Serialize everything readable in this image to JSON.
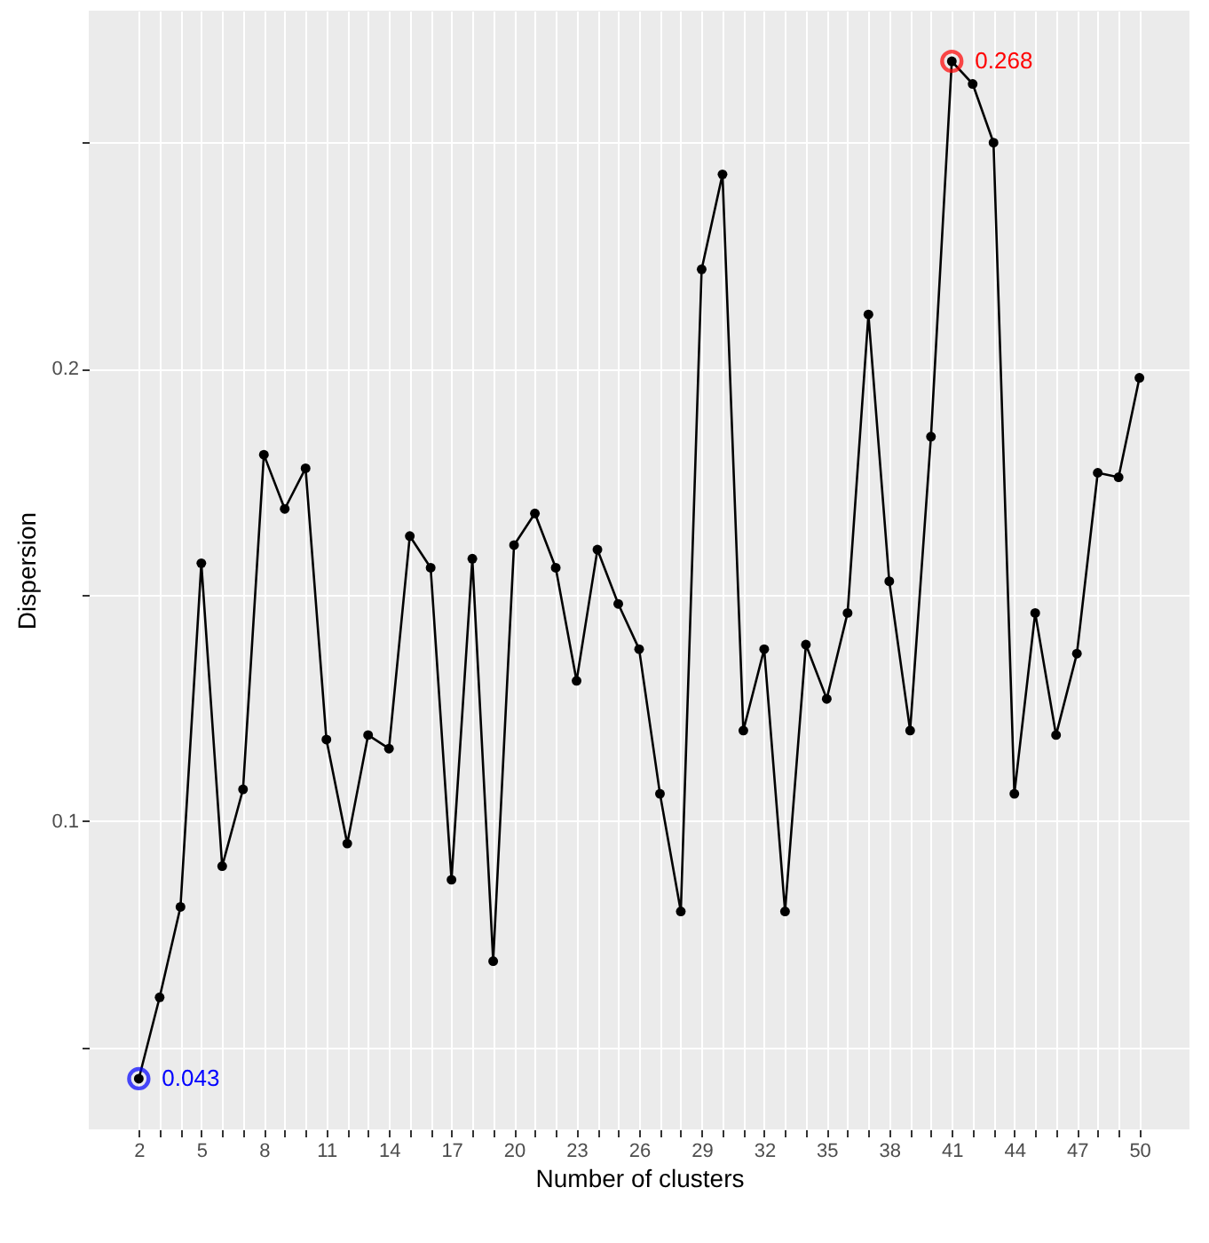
{
  "chart_data": {
    "type": "line",
    "xlabel": "Number of clusters",
    "ylabel": "Dispersion",
    "x": [
      2,
      3,
      4,
      5,
      6,
      7,
      8,
      9,
      10,
      11,
      12,
      13,
      14,
      15,
      16,
      17,
      18,
      19,
      20,
      21,
      22,
      23,
      24,
      25,
      26,
      27,
      28,
      29,
      30,
      31,
      32,
      33,
      34,
      35,
      36,
      37,
      38,
      39,
      40,
      41,
      42,
      43,
      44,
      45,
      46,
      47,
      48,
      49,
      50
    ],
    "xlim": [
      -0.4,
      52.4
    ],
    "xticks": [
      2,
      {
        "value": 3,
        "label": null
      },
      {
        "value": 4,
        "label": null
      },
      5,
      {
        "value": 6,
        "label": null
      },
      {
        "value": 7,
        "label": null
      },
      8,
      {
        "value": 9,
        "label": null
      },
      {
        "value": 10,
        "label": null
      },
      11,
      {
        "value": 12,
        "label": null
      },
      {
        "value": 13,
        "label": null
      },
      14,
      {
        "value": 15,
        "label": null
      },
      {
        "value": 16,
        "label": null
      },
      17,
      {
        "value": 18,
        "label": null
      },
      {
        "value": 19,
        "label": null
      },
      20,
      {
        "value": 21,
        "label": null
      },
      {
        "value": 22,
        "label": null
      },
      23,
      {
        "value": 24,
        "label": null
      },
      {
        "value": 25,
        "label": null
      },
      26,
      {
        "value": 27,
        "label": null
      },
      {
        "value": 28,
        "label": null
      },
      29,
      {
        "value": 30,
        "label": null
      },
      {
        "value": 31,
        "label": null
      },
      32,
      {
        "value": 33,
        "label": null
      },
      {
        "value": 34,
        "label": null
      },
      35,
      {
        "value": 36,
        "label": null
      },
      {
        "value": 37,
        "label": null
      },
      38,
      {
        "value": 39,
        "label": null
      },
      {
        "value": 40,
        "label": null
      },
      41,
      {
        "value": 42,
        "label": null
      },
      {
        "value": 43,
        "label": null
      },
      44,
      {
        "value": 45,
        "label": null
      },
      {
        "value": 46,
        "label": null
      },
      47,
      {
        "value": 48,
        "label": null
      },
      {
        "value": 49,
        "label": null
      },
      50
    ],
    "ylim": [
      0.0318,
      0.2792
    ],
    "yticks": [
      {
        "value": 0.05,
        "label": null
      },
      {
        "value": 0.1,
        "label": "0.1"
      },
      {
        "value": 0.15,
        "label": null
      },
      {
        "value": 0.2,
        "label": "0.2"
      },
      {
        "value": 0.25,
        "label": null
      }
    ],
    "grid": true,
    "marker": "circle",
    "line_style": "solid",
    "series": [
      {
        "color": "#000000",
        "values": [
          0.043,
          0.061,
          0.081,
          0.157,
          0.09,
          0.107,
          0.181,
          0.169,
          0.178,
          0.118,
          0.095,
          0.119,
          0.116,
          0.163,
          0.156,
          0.087,
          0.158,
          0.069,
          0.161,
          0.168,
          0.156,
          0.131,
          0.16,
          0.148,
          0.138,
          0.106,
          0.08,
          0.222,
          0.243,
          0.12,
          0.138,
          0.08,
          0.139,
          0.127,
          0.146,
          0.212,
          0.153,
          0.12,
          0.185,
          0.268,
          0.263,
          0.25,
          0.106,
          0.146,
          0.119,
          0.137,
          0.177,
          0.176,
          0.198
        ]
      },
      {
        "type": "scatter",
        "color": "#0000ff",
        "x": [
          2
        ],
        "values": [
          0.043
        ],
        "value_labels": [
          "0.043"
        ]
      },
      {
        "type": "scatter",
        "color": "#ff0000",
        "x": [
          41
        ],
        "values": [
          0.268
        ],
        "value_labels": [
          "0.268"
        ]
      }
    ]
  }
}
